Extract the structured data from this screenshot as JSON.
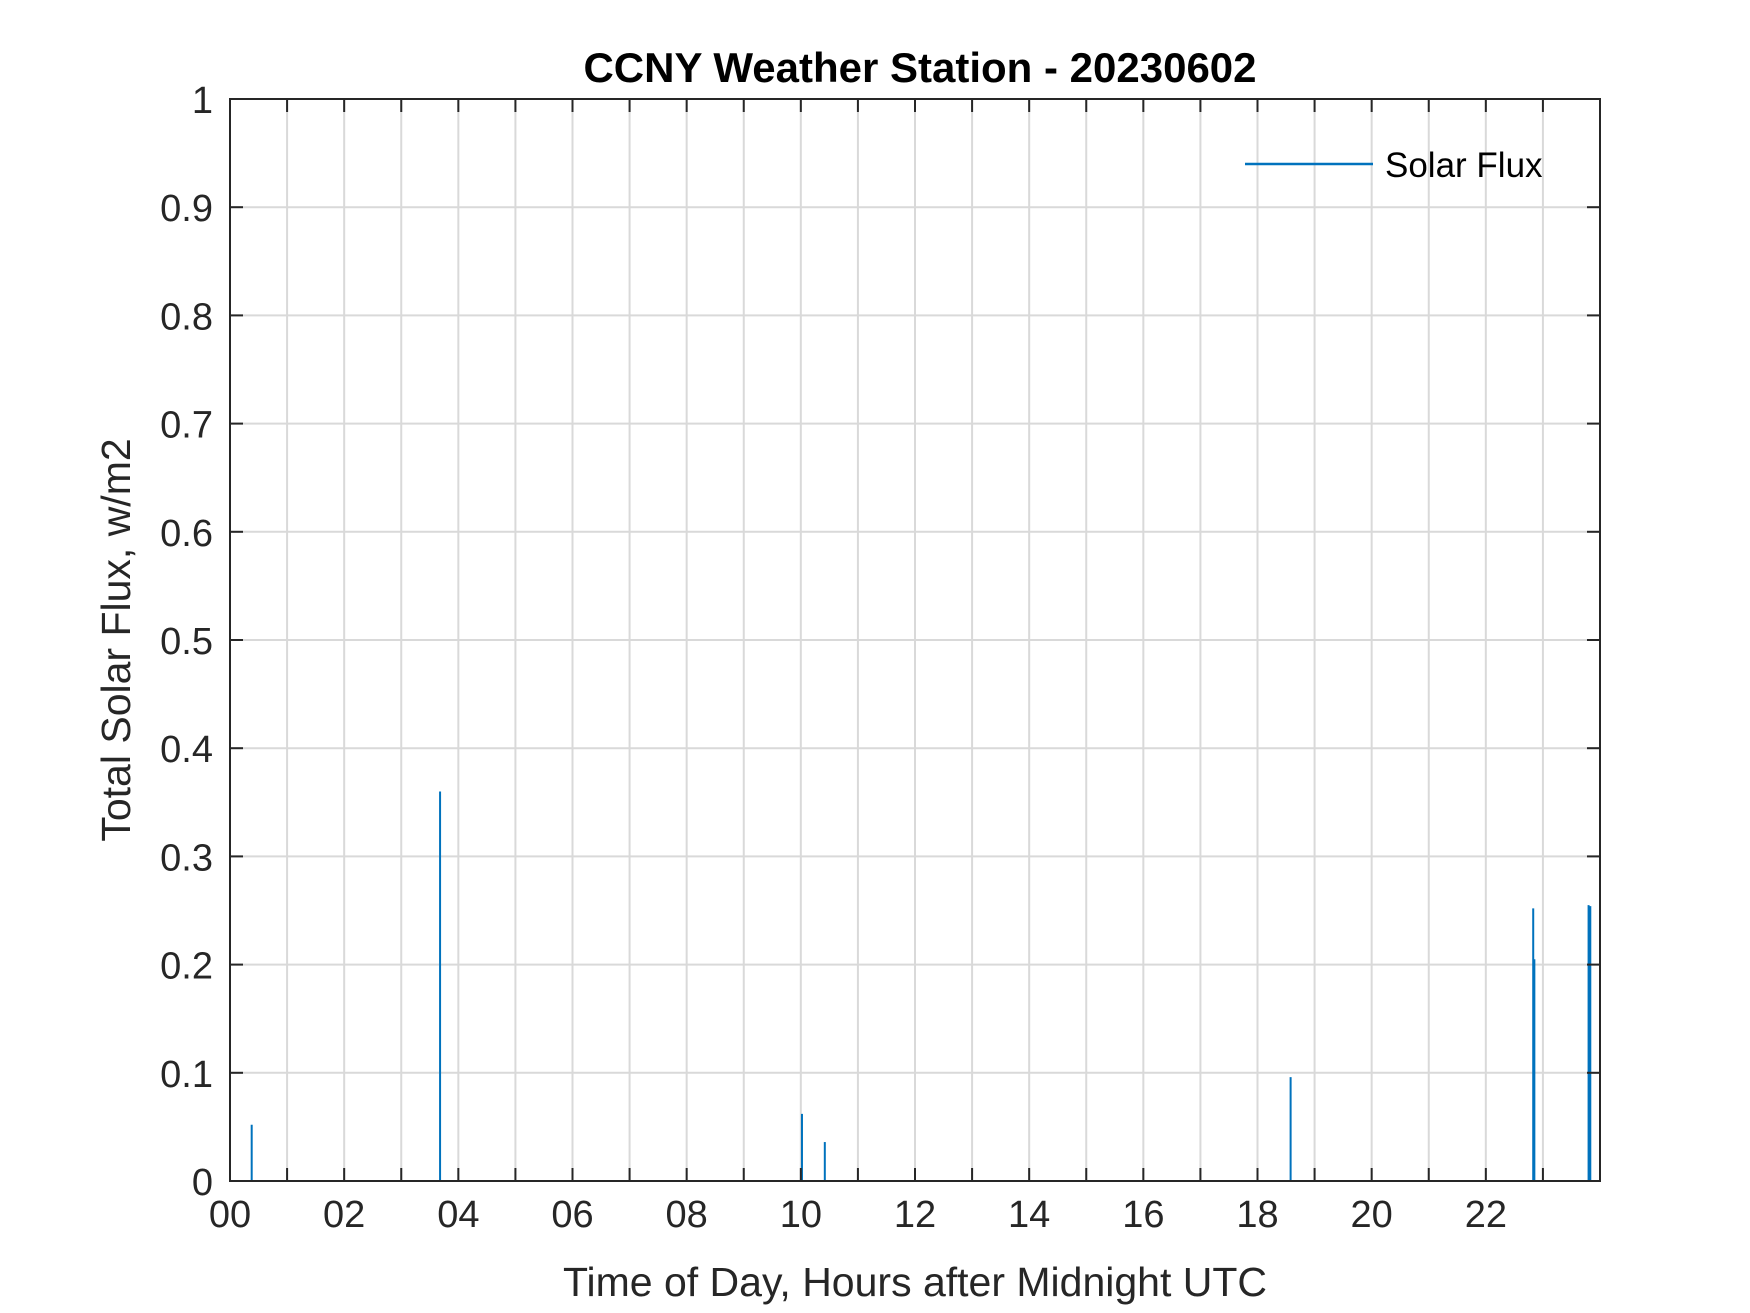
{
  "chart_data": {
    "type": "line",
    "title": "CCNY Weather Station - 20230602",
    "xlabel": "Time of Day, Hours after Midnight UTC",
    "ylabel": "Total Solar Flux, w/m2",
    "xlim": [
      0,
      24
    ],
    "ylim": [
      0,
      1
    ],
    "x_tick_values": [
      0,
      2,
      4,
      6,
      8,
      10,
      12,
      14,
      16,
      18,
      20,
      22
    ],
    "x_tick_labels": [
      "00",
      "02",
      "04",
      "06",
      "08",
      "10",
      "12",
      "14",
      "16",
      "18",
      "20",
      "22"
    ],
    "y_tick_values": [
      0,
      0.1,
      0.2,
      0.3,
      0.4,
      0.5,
      0.6,
      0.7,
      0.8,
      0.9,
      1
    ],
    "y_tick_labels": [
      "0",
      "0.1",
      "0.2",
      "0.3",
      "0.4",
      "0.5",
      "0.6",
      "0.7",
      "0.8",
      "0.9",
      "1"
    ],
    "grid": true,
    "legend_position": "top-right",
    "series": [
      {
        "name": "Solar Flux",
        "color": "#0072BD",
        "spikes": [
          {
            "x": 0.38,
            "y": 0.052
          },
          {
            "x": 3.68,
            "y": 0.36
          },
          {
            "x": 10.02,
            "y": 0.062
          },
          {
            "x": 10.42,
            "y": 0.036
          },
          {
            "x": 18.58,
            "y": 0.096
          },
          {
            "x": 22.83,
            "y": 0.252
          },
          {
            "x": 22.85,
            "y": 0.205
          },
          {
            "x": 23.8,
            "y": 0.255
          },
          {
            "x": 23.83,
            "y": 0.254
          }
        ]
      }
    ]
  }
}
